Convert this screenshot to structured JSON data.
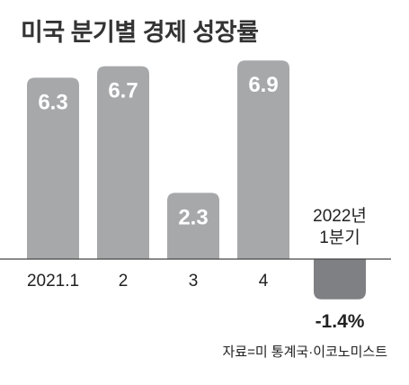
{
  "chart_data": {
    "type": "bar",
    "title": "미국 분기별 경제 성장률",
    "categories": [
      "2021.1",
      "2",
      "3",
      "4",
      "2022년 1분기"
    ],
    "values": [
      6.3,
      6.7,
      2.3,
      6.9,
      -1.4
    ],
    "value_labels": [
      "6.3",
      "6.7",
      "2.3",
      "6.9",
      "-1.4%"
    ],
    "xlabel": "",
    "ylabel": "",
    "grid": false,
    "legend": "none",
    "source": "자료=미 통계국·이코노미스트"
  },
  "colors": {
    "positive_bar": "#a7a8aa",
    "negative_bar": "#7f8083",
    "baseline": "#444444",
    "label_on_bar": "#ffffff",
    "text": "#222222"
  }
}
